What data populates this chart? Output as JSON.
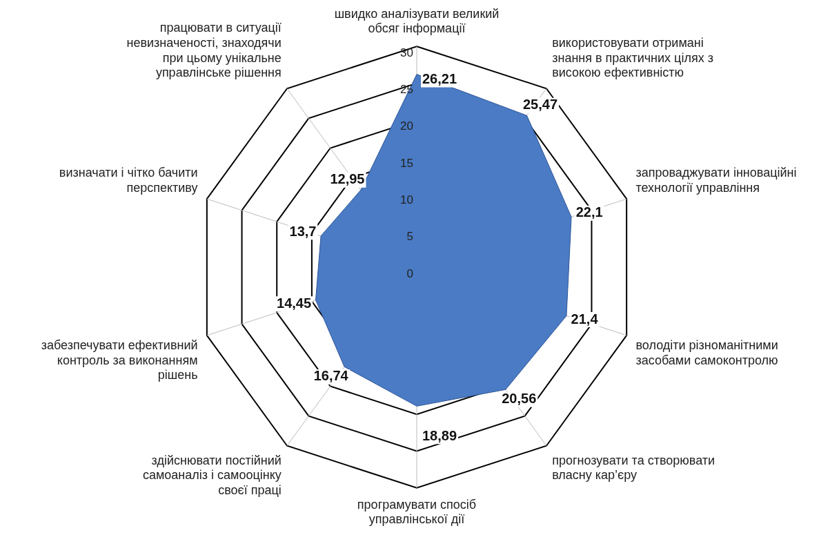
{
  "chart_data": {
    "type": "radar",
    "categories": [
      "швидко аналізувати великий обсяг інформації",
      "використовувати отримані знання в практичних цілях з високою ефективністю",
      "запроваджувати інноваційні технології управління",
      "володіти різноманітними засобами самоконтролю",
      "прогнозувати та створювати власну кар’єру",
      "програмувати спосіб управлінської дії",
      "здійснювати постійний самоаналіз і самооцінку своєї праці",
      "забезпечувати ефективний контроль за виконанням рішень",
      "визначати і чітко бачити перспективу",
      "працювати в ситуації невизначеності, знаходячи при цьому унікальне управлінське рішення"
    ],
    "series": [
      {
        "color": "#4a7bc4",
        "values": [
          26.21,
          25.47,
          22.1,
          21.4,
          20.56,
          18.89,
          16.74,
          14.45,
          13.7,
          12.95
        ],
        "value_labels": [
          "26,21",
          "25,47",
          "22,1",
          "21,4",
          "20,56",
          "18,89",
          "16,74",
          "14,45",
          "13,7",
          "12,95"
        ]
      }
    ],
    "ylim": [
      0,
      30
    ],
    "yticks": [
      0,
      5,
      10,
      15,
      20,
      25,
      30
    ],
    "grid": true,
    "legend": false
  }
}
